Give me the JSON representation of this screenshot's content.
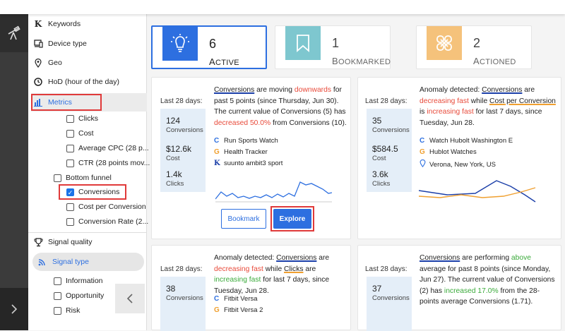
{
  "sidebar": {
    "keywords": "Keywords",
    "device_type": "Device type",
    "geo": "Geo",
    "hod": "HoD (hour of the day)",
    "metrics": "Metrics",
    "metric_items": [
      "Clicks",
      "Cost",
      "Average CPC (28 p...",
      "CTR (28 points mov..."
    ],
    "bottom_funnel": "Bottom funnel",
    "funnel_items": [
      "Conversions",
      "Cost per Conversion",
      "Conversion Rate (2..."
    ],
    "signal_quality": "Signal quality",
    "signal_type": "Signal type",
    "signal_items": [
      "Information",
      "Opportunity",
      "Risk"
    ]
  },
  "summary": {
    "active": {
      "count": "6",
      "label": "Active"
    },
    "bookmarked": {
      "count": "1",
      "label": "Bookmarked"
    },
    "actioned": {
      "count": "2",
      "label": "Actioned"
    }
  },
  "colors": {
    "accent": "#2d6fe0",
    "down": "#e84a3a",
    "up": "#3aaa3a",
    "highlight": "#e03a3a"
  },
  "cards": [
    {
      "period": "Last 28 days:",
      "stats": [
        {
          "value": "124",
          "label": "Conversions"
        },
        {
          "value": "$12.6k",
          "label": "Cost"
        },
        {
          "value": "1.4k",
          "label": "Clicks"
        }
      ],
      "message": {
        "m1": "Conversions",
        "t1": " are moving ",
        "trend": "downwards",
        "t2": " for past 5 points (since Thursday, Jun 30). The current value of Conversions (5) has ",
        "change": "decreased 50.0%",
        "t3": " from Conversions (10)."
      },
      "entities": [
        {
          "src": "C",
          "name": "Run Sports Watch"
        },
        {
          "src": "G",
          "name": "Health Tracker"
        },
        {
          "src": "K",
          "name": "suunto ambit3 sport"
        }
      ],
      "bookmark": "Bookmark",
      "explore": "Explore"
    },
    {
      "period": "Last 28 days:",
      "stats": [
        {
          "value": "35",
          "label": "Conversions"
        },
        {
          "value": "$584.5",
          "label": "Cost"
        },
        {
          "value": "3.6k",
          "label": "Clicks"
        }
      ],
      "message": {
        "t0": "Anomaly detected: ",
        "m1": "Conversions",
        "t1": " are ",
        "trend1": "decreasing fast",
        "t2": " while ",
        "m2a": "Cost",
        "m2b": " per Conversion",
        "t2b": " is ",
        "trend2": "increasing fast",
        "t3": " for last 7 days, since Tuesday, Jun 28."
      },
      "entities": [
        {
          "src": "C",
          "name": "Watch Hubolt Washington E"
        },
        {
          "src": "G",
          "name": "Hublot Watches"
        },
        {
          "src": "pin",
          "name": "Verona, New York, US"
        }
      ]
    },
    {
      "period": "Last 28 days:",
      "stats": [
        {
          "value": "38",
          "label": "Conversions"
        }
      ],
      "message": {
        "t0": "Anomaly detected: ",
        "m1": "Conversions",
        "t1": " are ",
        "trend1": "decreasing fast",
        "t2": " while ",
        "m2": "Clicks",
        "t2b": " are ",
        "trend2": "increasing fast",
        "t3": " for last 7 days, since Tuesday, Jun 28."
      },
      "entities": [
        {
          "src": "C",
          "name": "Fitbit Versa"
        },
        {
          "src": "G",
          "name": "Fitbit Versa 2"
        }
      ]
    },
    {
      "period": "Last 28 days:",
      "stats": [
        {
          "value": "37",
          "label": "Conversions"
        }
      ],
      "message": {
        "m1": "Conversions",
        "t1": " are performing ",
        "trend": "above",
        "t2": " average for past 8 points (since Monday, Jun 27). The current value of Conversions (2) has ",
        "change": "increased 17.0%",
        "t3": " from the 28-points average Conversions (1.71)."
      }
    }
  ]
}
